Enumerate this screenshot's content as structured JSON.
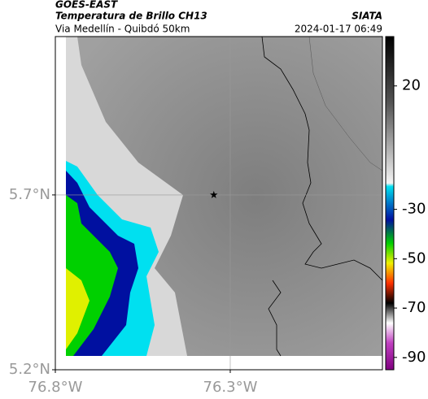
{
  "header": {
    "satellite": "GOES-EAST",
    "product": "Temperatura de Brillo CH13",
    "region": "Via Medellín - Quibdó 50km",
    "source": "SIATA",
    "timestamp": "2024-01-17 06:49"
  },
  "map": {
    "xlim": [
      -76.8,
      -75.865
    ],
    "ylim": [
      5.2,
      6.153
    ],
    "xticks": [
      {
        "value": -76.8,
        "label": "76.8°W"
      },
      {
        "value": -76.3,
        "label": "76.3°W"
      }
    ],
    "yticks": [
      {
        "value": 5.7,
        "label": "5.7°N"
      },
      {
        "value": 5.2,
        "label": "5.2°N"
      }
    ],
    "grid": true,
    "marker": {
      "lon": -76.347,
      "lat": 5.7
    }
  },
  "colorbar": {
    "clim": [
      -95,
      40
    ],
    "ticks": [
      20,
      -30,
      -50,
      -70,
      -90
    ]
  }
}
